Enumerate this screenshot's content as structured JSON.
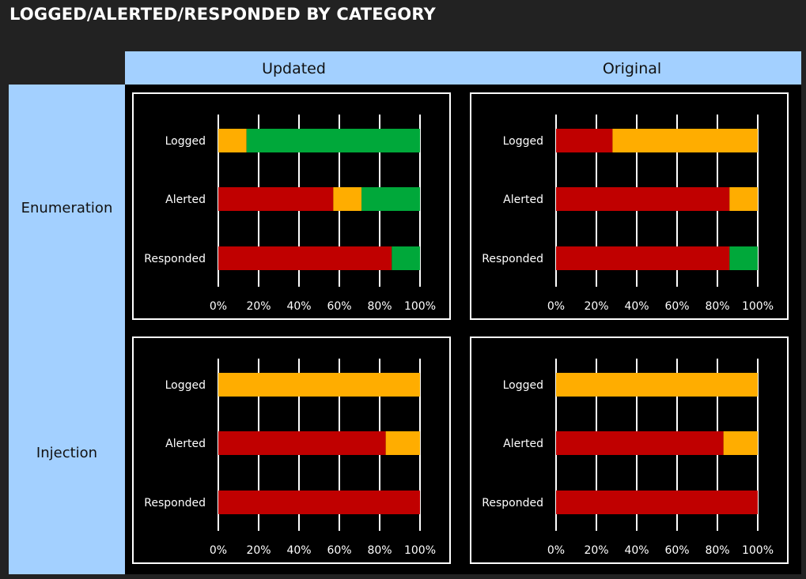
{
  "title": "LOGGED/ALERTED/RESPONDED BY CATEGORY",
  "columns": [
    "Updated",
    "Original"
  ],
  "rows": [
    "Enumeration",
    "Injection"
  ],
  "colors": {
    "red": "#c00000",
    "orange": "#ffad00",
    "green": "#00a83a",
    "header": "#a3d0ff"
  },
  "chart_data": [
    {
      "type": "bar",
      "panel": "Enumeration / Updated",
      "categories": [
        "Logged",
        "Alerted",
        "Responded"
      ],
      "series": [
        {
          "color": "red",
          "values": [
            0,
            57,
            86
          ]
        },
        {
          "color": "orange",
          "values": [
            14,
            14,
            0
          ]
        },
        {
          "color": "green",
          "values": [
            86,
            29,
            14
          ]
        }
      ],
      "ticks": [
        "0%",
        "20%",
        "40%",
        "60%",
        "80%",
        "100%"
      ],
      "xlim": [
        0,
        100
      ]
    },
    {
      "type": "bar",
      "panel": "Enumeration / Original",
      "categories": [
        "Logged",
        "Alerted",
        "Responded"
      ],
      "series": [
        {
          "color": "red",
          "values": [
            28,
            86,
            86
          ]
        },
        {
          "color": "orange",
          "values": [
            72,
            14,
            0
          ]
        },
        {
          "color": "green",
          "values": [
            0,
            0,
            14
          ]
        }
      ],
      "ticks": [
        "0%",
        "20%",
        "40%",
        "60%",
        "80%",
        "100%"
      ],
      "xlim": [
        0,
        100
      ]
    },
    {
      "type": "bar",
      "panel": "Injection / Updated",
      "categories": [
        "Logged",
        "Alerted",
        "Responded"
      ],
      "series": [
        {
          "color": "red",
          "values": [
            0,
            83,
            100
          ]
        },
        {
          "color": "orange",
          "values": [
            100,
            17,
            0
          ]
        },
        {
          "color": "green",
          "values": [
            0,
            0,
            0
          ]
        }
      ],
      "ticks": [
        "0%",
        "20%",
        "40%",
        "60%",
        "80%",
        "100%"
      ],
      "xlim": [
        0,
        100
      ]
    },
    {
      "type": "bar",
      "panel": "Injection / Original",
      "categories": [
        "Logged",
        "Alerted",
        "Responded"
      ],
      "series": [
        {
          "color": "red",
          "values": [
            0,
            83,
            100
          ]
        },
        {
          "color": "orange",
          "values": [
            100,
            17,
            0
          ]
        },
        {
          "color": "green",
          "values": [
            0,
            0,
            0
          ]
        }
      ],
      "ticks": [
        "0%",
        "20%",
        "40%",
        "60%",
        "80%",
        "100%"
      ],
      "xlim": [
        0,
        100
      ]
    }
  ]
}
